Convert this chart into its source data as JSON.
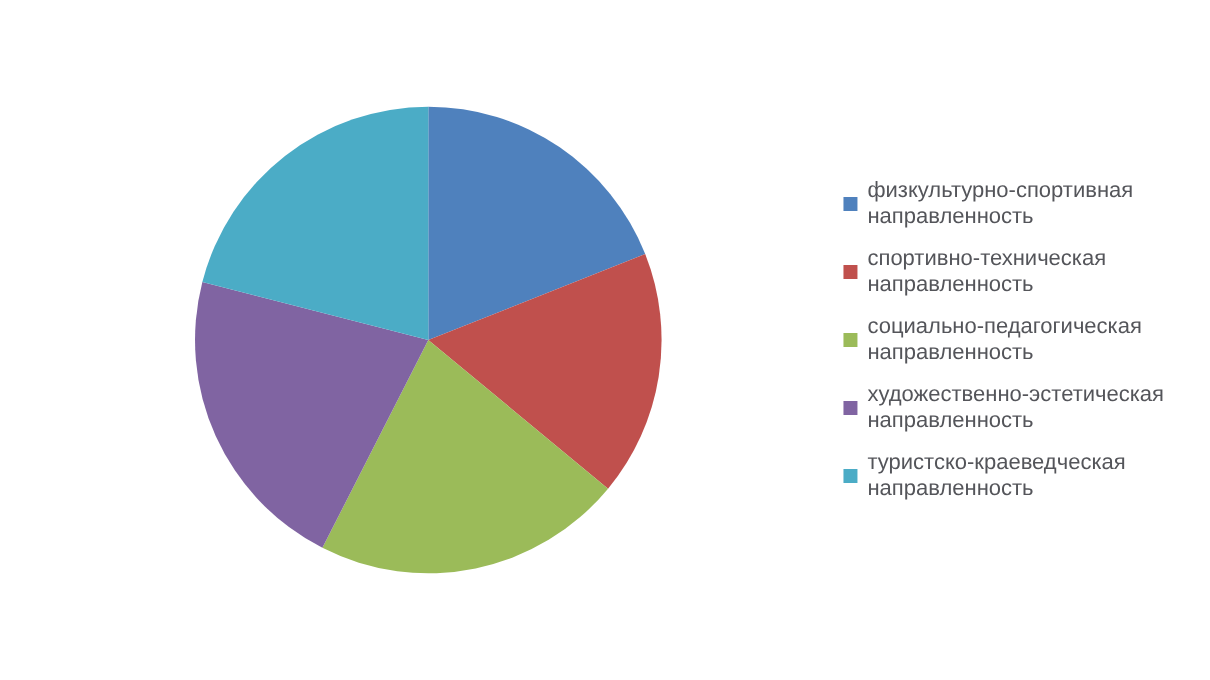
{
  "chart_data": {
    "type": "pie",
    "categories": [
      "физкультурно-спортивная направленность",
      "спортивно-техническая направленность",
      "социально-педагогическая направленность",
      "художественно-эстетическая направленность",
      "туристско-краеведческая направленность"
    ],
    "values": [
      19,
      17,
      21.5,
      21.5,
      21
    ],
    "colors": [
      "#4f81bd",
      "#c0504d",
      "#9bbb59",
      "#8064a2",
      "#4bacc6"
    ],
    "legend": "right"
  }
}
